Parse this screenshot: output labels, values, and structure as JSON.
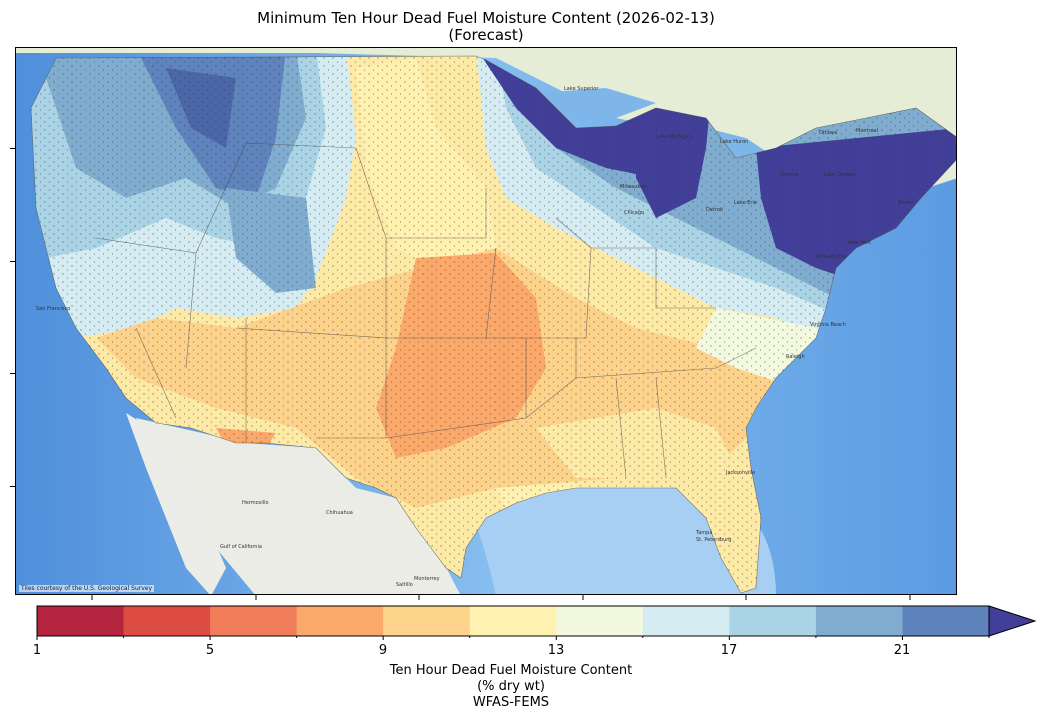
{
  "title": {
    "line1": "Minimum Ten Hour Dead Fuel Moisture Content (2026-02-13)",
    "line2": "(Forecast)"
  },
  "map": {
    "attribution": "Tiles courtesy of the U.S. Geological Survey",
    "places": [
      "San Francisco",
      "Hermosillo",
      "Chihuahua",
      "Monterrey",
      "Saltillo",
      "Gulf of California",
      "Milwaukee",
      "Chicago",
      "Detroit",
      "Toronto",
      "Ottawa",
      "Montreal",
      "Boston",
      "New York",
      "Philadelphia",
      "Virginia Beach",
      "Jacksonville",
      "Tampa",
      "St. Petersburg",
      "Raleigh",
      "Lake Superior",
      "Lake Michigan",
      "Lake Huron",
      "Lake Ontario",
      "Lake Erie"
    ],
    "colors": {
      "ocean": "#6aa9e6",
      "land_mexico": "#eaeeea",
      "land_canada": "#e8eedc"
    }
  },
  "colorbar": {
    "ticks": [
      "1",
      "5",
      "9",
      "13",
      "17",
      "21"
    ],
    "bins": [
      "#b5253f",
      "#dd4c43",
      "#f17c5a",
      "#fba86b",
      "#fdd38c",
      "#fff1b0",
      "#f2f9de",
      "#d5ecf3",
      "#abd3e6",
      "#80adcf",
      "#5f83bc",
      "#423f9a"
    ],
    "label_line1": "Ten Hour Dead Fuel Moisture Content",
    "label_line2": "(% dry wt)",
    "label_line3": "WFAS-FEMS"
  }
}
